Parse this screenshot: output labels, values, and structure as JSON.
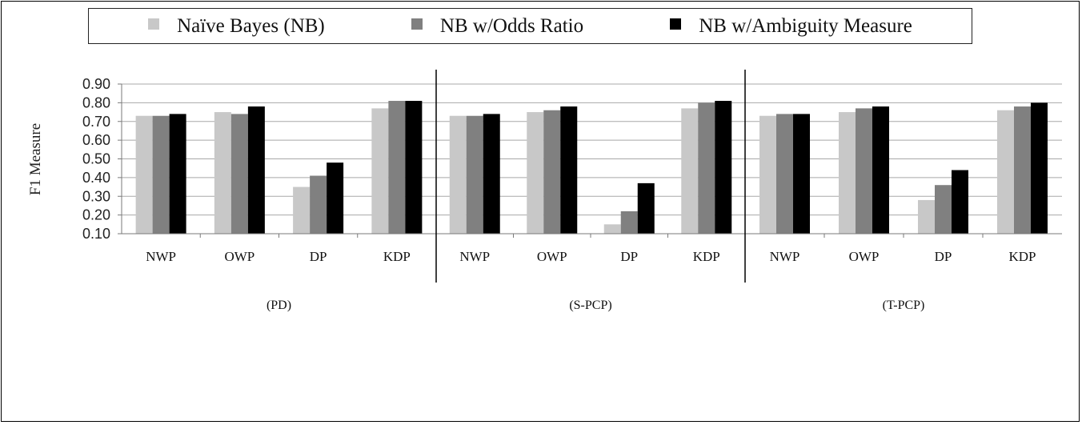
{
  "colors": {
    "nb": "#c8c8c8",
    "odds": "#808080",
    "ambiguity": "#000000",
    "grid": "#a8a8a8",
    "axis": "#7a7a7a",
    "divider": "#000000"
  },
  "legend": {
    "items": [
      {
        "label": "Naïve Bayes (NB)",
        "color": "#c8c8c8"
      },
      {
        "label": "NB w/Odds Ratio",
        "color": "#808080"
      },
      {
        "label": "NB w/Ambiguity Measure",
        "color": "#000000"
      }
    ]
  },
  "chart_data": {
    "type": "bar",
    "ylabel": "F1 Measure",
    "ylim": [
      0.1,
      0.9
    ],
    "yticks": [
      "0.90",
      "0.80",
      "0.70",
      "0.60",
      "0.50",
      "0.40",
      "0.30",
      "0.20",
      "0.10"
    ],
    "grid": true,
    "legend_position": "top",
    "series_names": [
      "Naïve Bayes (NB)",
      "NB w/Odds Ratio",
      "NB w/Ambiguity Measure"
    ],
    "groups": [
      {
        "label": "(PD)",
        "categories": [
          "NWP",
          "OWP",
          "DP",
          "KDP"
        ],
        "values": [
          [
            0.73,
            0.73,
            0.74
          ],
          [
            0.75,
            0.74,
            0.78
          ],
          [
            0.35,
            0.41,
            0.48
          ],
          [
            0.77,
            0.81,
            0.81
          ]
        ]
      },
      {
        "label": "(S-PCP)",
        "categories": [
          "NWP",
          "OWP",
          "DP",
          "KDP"
        ],
        "values": [
          [
            0.73,
            0.73,
            0.74
          ],
          [
            0.75,
            0.76,
            0.78
          ],
          [
            0.15,
            0.22,
            0.37
          ],
          [
            0.77,
            0.8,
            0.81
          ]
        ]
      },
      {
        "label": "(T-PCP)",
        "categories": [
          "NWP",
          "OWP",
          "DP",
          "KDP"
        ],
        "values": [
          [
            0.73,
            0.74,
            0.74
          ],
          [
            0.75,
            0.77,
            0.78
          ],
          [
            0.28,
            0.36,
            0.44
          ],
          [
            0.76,
            0.78,
            0.8
          ]
        ]
      }
    ]
  }
}
